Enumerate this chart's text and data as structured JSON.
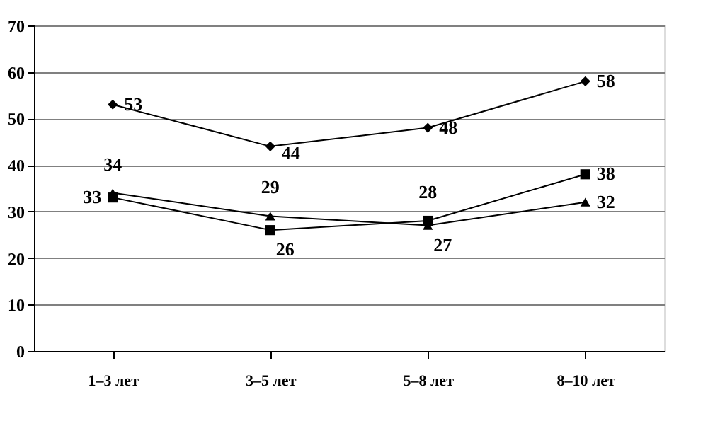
{
  "chart_data": {
    "type": "line",
    "categories": [
      "1–3 лет",
      "3–5 лет",
      "5–8 лет",
      "8–10 лет"
    ],
    "series": [
      {
        "color": "#000000",
        "marker": "diamond",
        "values": [
          53,
          44,
          48,
          58
        ]
      },
      {
        "color": "#000000",
        "marker": "square",
        "values": [
          33,
          26,
          28,
          38
        ]
      },
      {
        "color": "#000000",
        "marker": "triangle",
        "values": [
          34,
          29,
          27,
          32
        ]
      }
    ],
    "ylim": [
      0,
      70
    ],
    "yticks": [
      0,
      10,
      20,
      30,
      40,
      50,
      60,
      70
    ],
    "grid": "y",
    "data_labels": true,
    "line_style": "solid"
  }
}
